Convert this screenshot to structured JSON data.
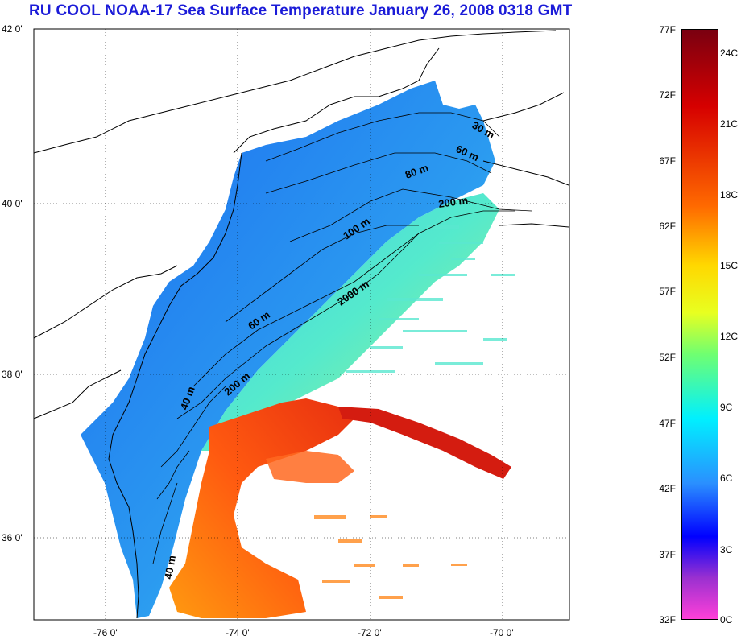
{
  "title": "RU COOL  NOAA-17 Sea Surface Temperature January 26, 2008 0318 GMT",
  "lat_labels": [
    "42 0'",
    "40 0'",
    "38 0'",
    "36 0'"
  ],
  "lon_labels": [
    "-76 0'",
    "-74 0'",
    "-72 0'",
    "-70 0'"
  ],
  "colorbar": {
    "fahrenheit": [
      "77F",
      "72F",
      "67F",
      "62F",
      "57F",
      "52F",
      "47F",
      "42F",
      "37F",
      "32F"
    ],
    "celsius": [
      "24C",
      "21C",
      "18C",
      "15C",
      "12C",
      "9C",
      "6C",
      "3C",
      "0C"
    ]
  },
  "isobaths": [
    "30 m",
    "60 m",
    "80 m",
    "200 m",
    "100 m",
    "2000 m",
    "60 m",
    "200 m",
    "40 m",
    "40 m"
  ]
}
